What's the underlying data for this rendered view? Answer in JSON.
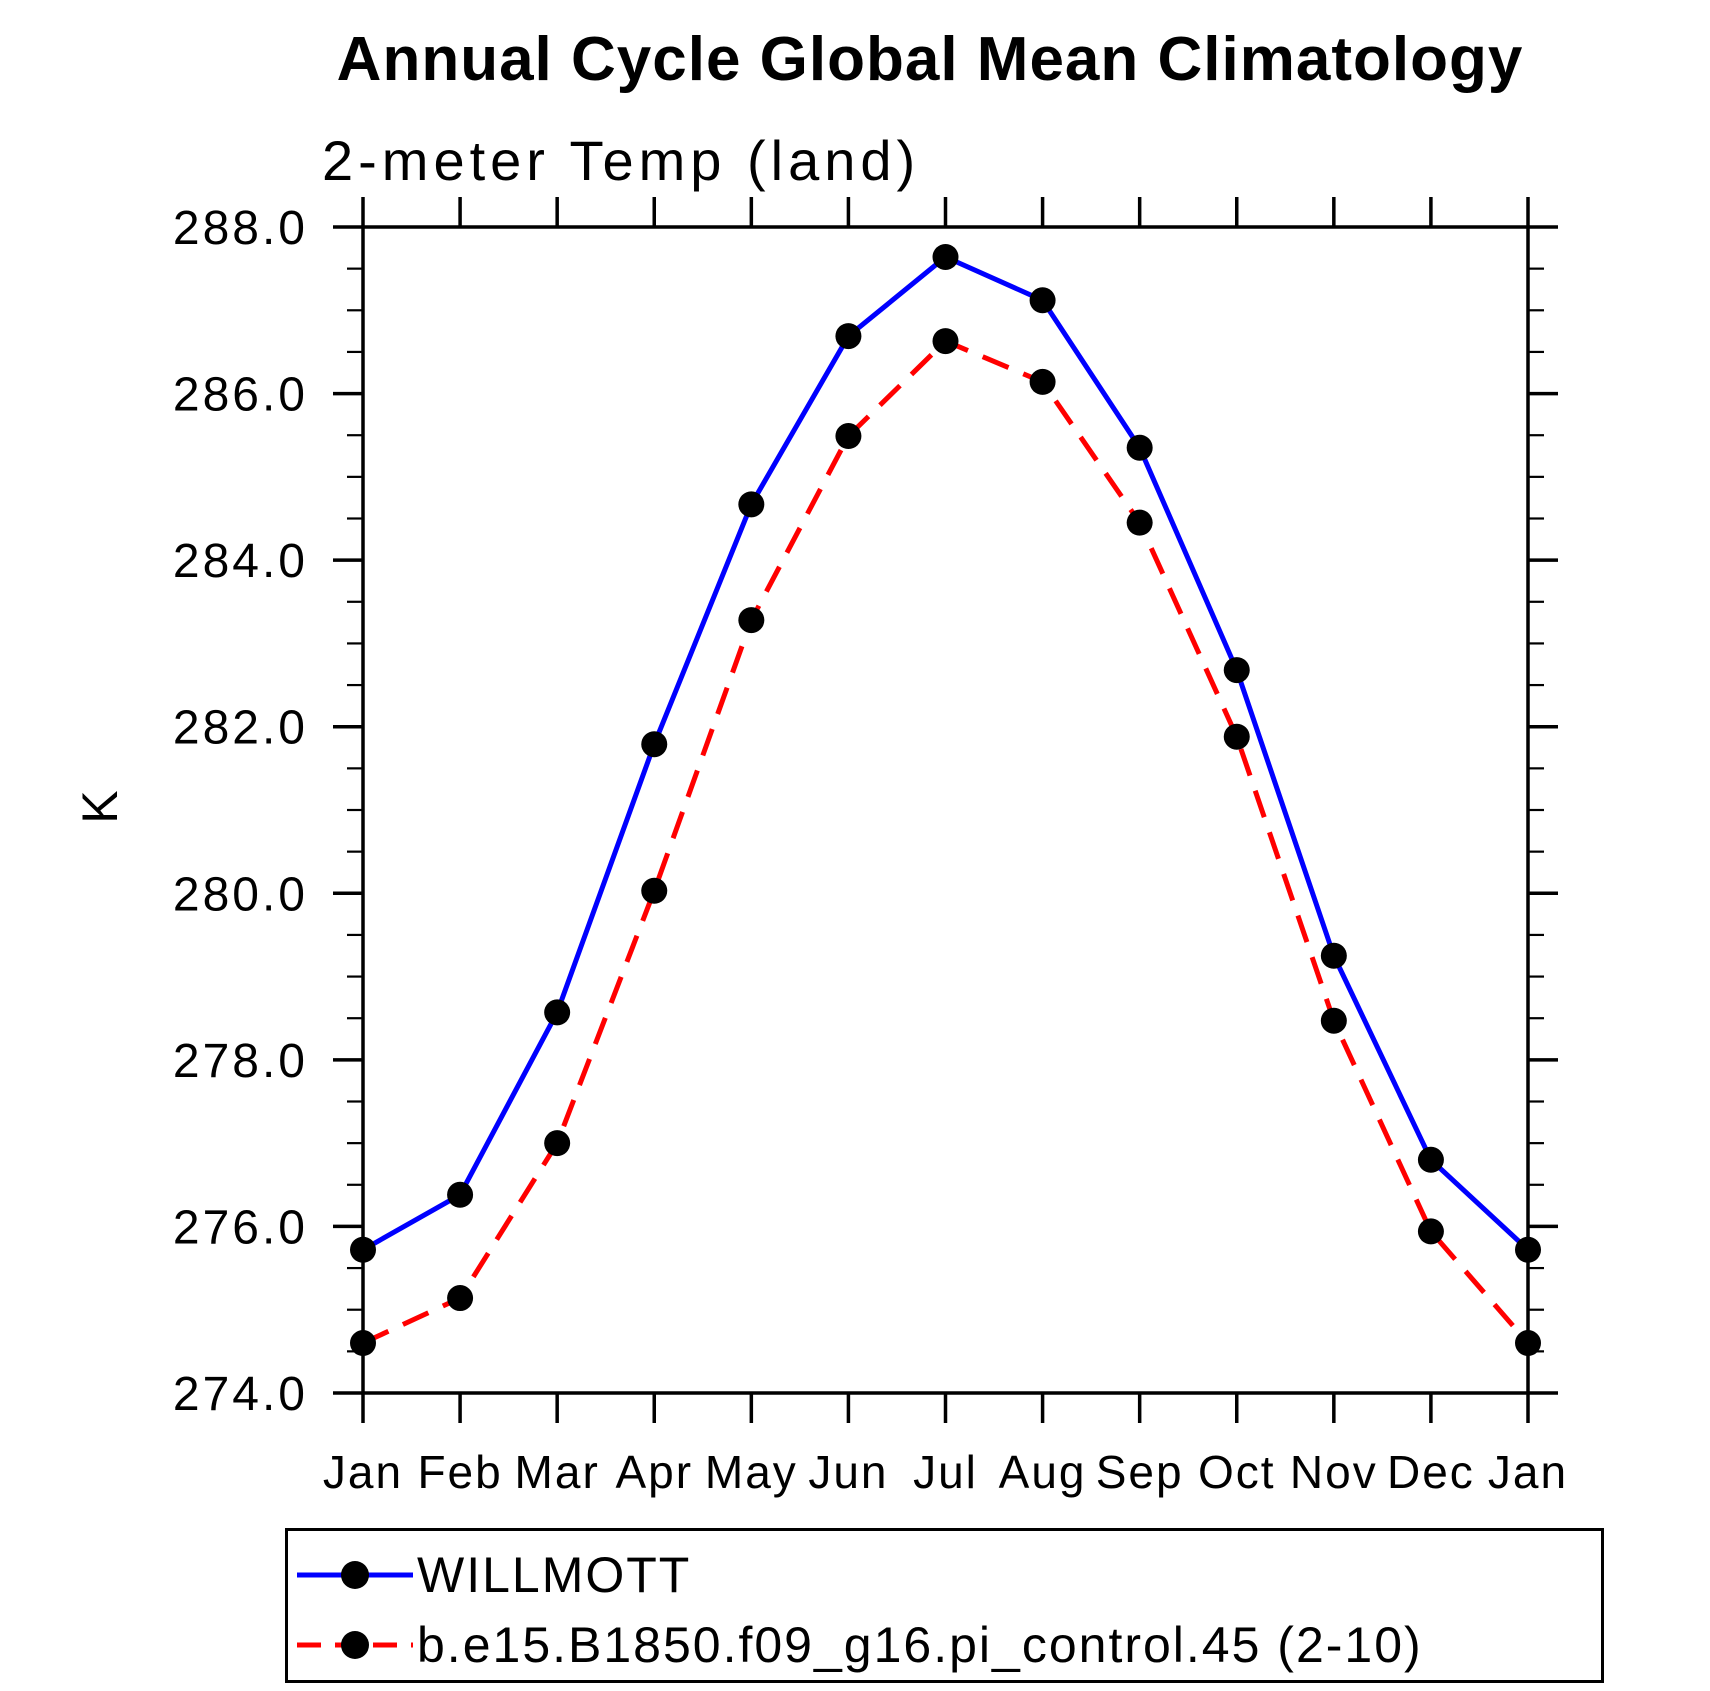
{
  "title": "Annual Cycle Global Mean Climatology",
  "subtitle": "2-meter Temp (land)",
  "ylabel": "K",
  "colors": {
    "background": "#ffffff",
    "axis": "#000000",
    "series_obs": "#0000ff",
    "series_model": "#ff0000",
    "marker": "#000000"
  },
  "chart_data": {
    "type": "line",
    "title": "Annual Cycle Global Mean Climatology",
    "subtitle": "2-meter Temp (land)",
    "xlabel": "",
    "ylabel": "K",
    "x_categories": [
      "Jan",
      "Feb",
      "Mar",
      "Apr",
      "May",
      "Jun",
      "Jul",
      "Aug",
      "Sep",
      "Oct",
      "Nov",
      "Dec",
      "Jan"
    ],
    "ylim": [
      274.0,
      288.0
    ],
    "ytick_major_step": 2.0,
    "ytick_minor_step": 0.5,
    "ytick_labels": [
      "274.0",
      "276.0",
      "278.0",
      "280.0",
      "282.0",
      "284.0",
      "286.0",
      "288.0"
    ],
    "grid": false,
    "legend_position": "bottom",
    "series": [
      {
        "name": "WILLMOTT",
        "color": "#0000ff",
        "line_style": "solid",
        "marker": "circle",
        "marker_color": "#000000",
        "values": [
          275.72,
          276.38,
          278.57,
          281.79,
          284.67,
          286.69,
          287.64,
          287.12,
          285.35,
          282.68,
          279.25,
          276.8,
          275.72
        ]
      },
      {
        "name": "b.e15.B1850.f09_g16.pi_control.45 (2-10)",
        "color": "#ff0000",
        "line_style": "dashed",
        "marker": "circle",
        "marker_color": "#000000",
        "values": [
          274.6,
          275.14,
          277.0,
          280.03,
          283.28,
          285.49,
          286.63,
          286.14,
          284.45,
          281.88,
          278.47,
          275.94,
          274.6
        ]
      }
    ]
  }
}
